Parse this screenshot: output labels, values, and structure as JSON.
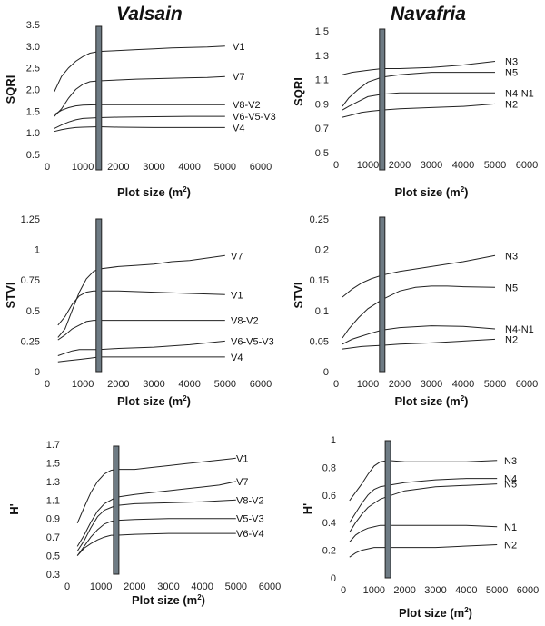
{
  "figure": {
    "titles": {
      "valsain": "Valsain",
      "navafria": "Navafria"
    }
  },
  "chart_data": [
    {
      "type": "line",
      "id": "valsain-sqri",
      "column": "Valsain",
      "ylabel": "SQRI",
      "xlabel": "Plot size (m²)",
      "xlim": [
        0,
        6000
      ],
      "ylim": [
        0.5,
        3.5
      ],
      "xticks": [
        "0",
        "1000",
        "2000",
        "3000",
        "4000",
        "5000",
        "6000"
      ],
      "yticks": [
        "0.5",
        "1.0",
        "1.5",
        "2.0",
        "2.5",
        "3.0",
        "3.5"
      ],
      "bar_x": 1450,
      "series": [
        {
          "name": "V1",
          "x": [
            200,
            400,
            600,
            800,
            1000,
            1200,
            1450,
            2000,
            2500,
            3000,
            3500,
            4000,
            4500,
            5000
          ],
          "y": [
            1.95,
            2.3,
            2.5,
            2.65,
            2.76,
            2.84,
            2.88,
            2.9,
            2.92,
            2.94,
            2.96,
            2.97,
            2.98,
            3.0
          ]
        },
        {
          "name": "V7",
          "x": [
            200,
            400,
            600,
            800,
            1000,
            1200,
            1450,
            2000,
            2500,
            3000,
            3500,
            4000,
            4500,
            5000
          ],
          "y": [
            1.38,
            1.55,
            1.8,
            2.0,
            2.12,
            2.18,
            2.2,
            2.22,
            2.24,
            2.25,
            2.26,
            2.27,
            2.28,
            2.3
          ]
        },
        {
          "name": "V8-V2",
          "x": [
            200,
            400,
            600,
            800,
            1000,
            1450,
            2000,
            3000,
            4000,
            5000
          ],
          "y": [
            1.42,
            1.52,
            1.58,
            1.62,
            1.64,
            1.65,
            1.65,
            1.65,
            1.65,
            1.65
          ]
        },
        {
          "name": "V6-V5-V3",
          "x": [
            200,
            400,
            600,
            800,
            1000,
            1450,
            2000,
            3000,
            4000,
            5000
          ],
          "y": [
            1.1,
            1.18,
            1.25,
            1.3,
            1.33,
            1.35,
            1.36,
            1.37,
            1.38,
            1.38
          ]
        },
        {
          "name": "V4",
          "x": [
            200,
            400,
            600,
            800,
            1000,
            1450,
            2000,
            3000,
            4000,
            5000
          ],
          "y": [
            1.03,
            1.07,
            1.1,
            1.12,
            1.13,
            1.14,
            1.13,
            1.12,
            1.12,
            1.12
          ]
        }
      ]
    },
    {
      "type": "line",
      "id": "navafria-sqri",
      "column": "Navafria",
      "ylabel": "SQRI",
      "xlabel": "Plot size (m²)",
      "xlim": [
        0,
        6000
      ],
      "ylim": [
        0.5,
        1.5
      ],
      "xticks": [
        "0",
        "1000",
        "2000",
        "3000",
        "4000",
        "5000",
        "6000"
      ],
      "yticks": [
        "0.5",
        "0.7",
        "0.9",
        "1.1",
        "1.3",
        "1.5"
      ],
      "bar_x": 1450,
      "series": [
        {
          "name": "N3",
          "x": [
            200,
            500,
            800,
            1100,
            1450,
            2000,
            3000,
            4000,
            5000
          ],
          "y": [
            1.14,
            1.16,
            1.17,
            1.18,
            1.19,
            1.19,
            1.2,
            1.22,
            1.25
          ]
        },
        {
          "name": "N5",
          "x": [
            200,
            400,
            700,
            1000,
            1450,
            2000,
            2500,
            3000,
            3500,
            4000,
            5000
          ],
          "y": [
            0.88,
            0.95,
            1.02,
            1.08,
            1.12,
            1.14,
            1.15,
            1.16,
            1.16,
            1.16,
            1.16
          ]
        },
        {
          "name": "N4-N1",
          "x": [
            200,
            400,
            700,
            1000,
            1450,
            2000,
            3000,
            4000,
            5000
          ],
          "y": [
            0.85,
            0.88,
            0.92,
            0.96,
            0.98,
            0.99,
            0.99,
            0.99,
            0.99
          ]
        },
        {
          "name": "N2",
          "x": [
            200,
            500,
            800,
            1100,
            1450,
            2000,
            3000,
            4000,
            5000
          ],
          "y": [
            0.79,
            0.81,
            0.83,
            0.84,
            0.85,
            0.86,
            0.87,
            0.88,
            0.9
          ]
        }
      ]
    },
    {
      "type": "line",
      "id": "valsain-stvi",
      "column": "Valsain",
      "ylabel": "STVI",
      "xlabel": "Plot size (m²)",
      "xlim": [
        0,
        6000
      ],
      "ylim": [
        0,
        1.25
      ],
      "xticks": [
        "0",
        "1000",
        "2000",
        "3000",
        "4000",
        "5000",
        "6000"
      ],
      "yticks": [
        "0",
        "0.25",
        "0.5",
        "0.75",
        "1",
        "1.25"
      ],
      "bar_x": 1450,
      "series": [
        {
          "name": "V7",
          "x": [
            300,
            500,
            700,
            900,
            1100,
            1300,
            1450,
            2000,
            2500,
            3000,
            3500,
            4000,
            4500,
            5000
          ],
          "y": [
            0.28,
            0.35,
            0.5,
            0.65,
            0.76,
            0.82,
            0.84,
            0.86,
            0.87,
            0.88,
            0.9,
            0.91,
            0.93,
            0.95
          ]
        },
        {
          "name": "V1",
          "x": [
            300,
            500,
            700,
            900,
            1100,
            1300,
            1450,
            2000,
            3000,
            4000,
            5000
          ],
          "y": [
            0.38,
            0.45,
            0.55,
            0.62,
            0.65,
            0.66,
            0.66,
            0.66,
            0.65,
            0.64,
            0.63
          ]
        },
        {
          "name": "V8-V2",
          "x": [
            300,
            500,
            700,
            900,
            1100,
            1300,
            1450,
            2000,
            3000,
            4000,
            5000
          ],
          "y": [
            0.26,
            0.3,
            0.35,
            0.38,
            0.41,
            0.42,
            0.42,
            0.42,
            0.42,
            0.42,
            0.42
          ]
        },
        {
          "name": "V6-V5-V3",
          "x": [
            300,
            500,
            700,
            900,
            1100,
            1450,
            2000,
            3000,
            4000,
            5000
          ],
          "y": [
            0.13,
            0.15,
            0.17,
            0.18,
            0.18,
            0.18,
            0.19,
            0.2,
            0.22,
            0.25
          ]
        },
        {
          "name": "V4",
          "x": [
            300,
            600,
            900,
            1200,
            1450,
            2000,
            3000,
            4000,
            5000
          ],
          "y": [
            0.08,
            0.09,
            0.1,
            0.11,
            0.12,
            0.12,
            0.12,
            0.12,
            0.12
          ]
        }
      ]
    },
    {
      "type": "line",
      "id": "navafria-stvi",
      "column": "Navafria",
      "ylabel": "STVI",
      "xlabel": "Plot size (m²)",
      "xlim": [
        0,
        6000
      ],
      "ylim": [
        0,
        0.25
      ],
      "xticks": [
        "0",
        "1000",
        "2000",
        "3000",
        "4000",
        "5000",
        "6000"
      ],
      "yticks": [
        "0",
        "0.05",
        "0.1",
        "0.15",
        "0.2",
        "0.25"
      ],
      "bar_x": 1450,
      "series": [
        {
          "name": "N3",
          "x": [
            200,
            500,
            800,
            1100,
            1450,
            2000,
            3000,
            4000,
            5000
          ],
          "y": [
            0.122,
            0.135,
            0.145,
            0.152,
            0.158,
            0.164,
            0.172,
            0.18,
            0.19
          ]
        },
        {
          "name": "N5",
          "x": [
            200,
            400,
            700,
            1000,
            1450,
            2000,
            2500,
            3000,
            3500,
            4000,
            5000
          ],
          "y": [
            0.055,
            0.07,
            0.088,
            0.103,
            0.118,
            0.132,
            0.138,
            0.14,
            0.14,
            0.139,
            0.138
          ]
        },
        {
          "name": "N4-N1",
          "x": [
            200,
            500,
            800,
            1100,
            1450,
            2000,
            3000,
            4000,
            5000
          ],
          "y": [
            0.045,
            0.053,
            0.058,
            0.063,
            0.068,
            0.072,
            0.075,
            0.074,
            0.07
          ]
        },
        {
          "name": "N2",
          "x": [
            200,
            500,
            800,
            1100,
            1450,
            2000,
            3000,
            4000,
            5000
          ],
          "y": [
            0.037,
            0.039,
            0.041,
            0.042,
            0.043,
            0.045,
            0.047,
            0.05,
            0.053
          ]
        }
      ]
    },
    {
      "type": "line",
      "id": "valsain-h",
      "column": "Valsain",
      "ylabel": "H'",
      "xlabel": "Plot size (m²)",
      "xlim": [
        0,
        6000
      ],
      "ylim": [
        0.3,
        1.7
      ],
      "xticks": [
        "0",
        "1000",
        "2000",
        "3000",
        "4000",
        "5000",
        "6000"
      ],
      "yticks": [
        "0.3",
        "0.5",
        "0.7",
        "0.9",
        "1.1",
        "1.3",
        "1.5",
        "1.7"
      ],
      "bar_x": 1450,
      "series": [
        {
          "name": "V1",
          "x": [
            300,
            500,
            700,
            900,
            1100,
            1300,
            1450,
            2000,
            2500,
            3000,
            3500,
            4000,
            4500,
            5000
          ],
          "y": [
            0.85,
            1.02,
            1.18,
            1.3,
            1.38,
            1.42,
            1.43,
            1.43,
            1.45,
            1.47,
            1.49,
            1.51,
            1.53,
            1.55
          ]
        },
        {
          "name": "V7",
          "x": [
            300,
            500,
            700,
            900,
            1100,
            1300,
            1450,
            2000,
            2500,
            3000,
            3500,
            4000,
            4500,
            5000
          ],
          "y": [
            0.6,
            0.72,
            0.86,
            0.98,
            1.06,
            1.1,
            1.13,
            1.16,
            1.18,
            1.2,
            1.22,
            1.24,
            1.26,
            1.3
          ]
        },
        {
          "name": "V8-V2",
          "x": [
            300,
            500,
            700,
            900,
            1100,
            1300,
            1450,
            2000,
            3000,
            4000,
            5000
          ],
          "y": [
            0.55,
            0.66,
            0.8,
            0.92,
            0.99,
            1.02,
            1.04,
            1.06,
            1.07,
            1.08,
            1.1
          ]
        },
        {
          "name": "V5-V3",
          "x": [
            300,
            500,
            700,
            900,
            1100,
            1300,
            1450,
            2000,
            3000,
            4000,
            5000
          ],
          "y": [
            0.5,
            0.6,
            0.7,
            0.78,
            0.84,
            0.87,
            0.88,
            0.89,
            0.9,
            0.9,
            0.9
          ]
        },
        {
          "name": "V6-V4",
          "x": [
            300,
            500,
            700,
            900,
            1100,
            1300,
            1450,
            2000,
            3000,
            4000,
            5000
          ],
          "y": [
            0.5,
            0.58,
            0.63,
            0.67,
            0.7,
            0.72,
            0.72,
            0.73,
            0.74,
            0.74,
            0.74
          ]
        }
      ]
    },
    {
      "type": "line",
      "id": "navafria-h",
      "column": "Navafria",
      "ylabel": "H'",
      "xlabel": "Plot size (m²)",
      "xlim": [
        0,
        6000
      ],
      "ylim": [
        0,
        1
      ],
      "xticks": [
        "0",
        "1000",
        "2000",
        "3000",
        "4000",
        "5000",
        "6000"
      ],
      "yticks": [
        "0",
        "0.2",
        "0.4",
        "0.6",
        "0.8",
        "1"
      ],
      "bar_x": 1450,
      "series": [
        {
          "name": "N3",
          "x": [
            200,
            400,
            600,
            800,
            1000,
            1200,
            1450,
            2000,
            3000,
            4000,
            5000
          ],
          "y": [
            0.56,
            0.62,
            0.68,
            0.75,
            0.81,
            0.84,
            0.85,
            0.84,
            0.84,
            0.84,
            0.85
          ]
        },
        {
          "name": "N4",
          "x": [
            200,
            400,
            600,
            800,
            1000,
            1200,
            1450,
            2000,
            3000,
            4000,
            5000
          ],
          "y": [
            0.4,
            0.47,
            0.54,
            0.6,
            0.64,
            0.66,
            0.67,
            0.69,
            0.71,
            0.72,
            0.72
          ]
        },
        {
          "name": "N5",
          "x": [
            200,
            400,
            600,
            800,
            1000,
            1200,
            1450,
            2000,
            3000,
            4000,
            5000
          ],
          "y": [
            0.33,
            0.4,
            0.46,
            0.51,
            0.54,
            0.57,
            0.59,
            0.63,
            0.66,
            0.67,
            0.68
          ]
        },
        {
          "name": "N1",
          "x": [
            200,
            400,
            600,
            800,
            1000,
            1200,
            1450,
            2000,
            3000,
            4000,
            5000
          ],
          "y": [
            0.26,
            0.31,
            0.34,
            0.36,
            0.37,
            0.38,
            0.38,
            0.38,
            0.38,
            0.38,
            0.37
          ]
        },
        {
          "name": "N2",
          "x": [
            200,
            400,
            600,
            800,
            1000,
            1200,
            1450,
            2000,
            3000,
            4000,
            5000
          ],
          "y": [
            0.15,
            0.18,
            0.2,
            0.21,
            0.22,
            0.22,
            0.22,
            0.22,
            0.22,
            0.23,
            0.24
          ]
        }
      ]
    }
  ]
}
